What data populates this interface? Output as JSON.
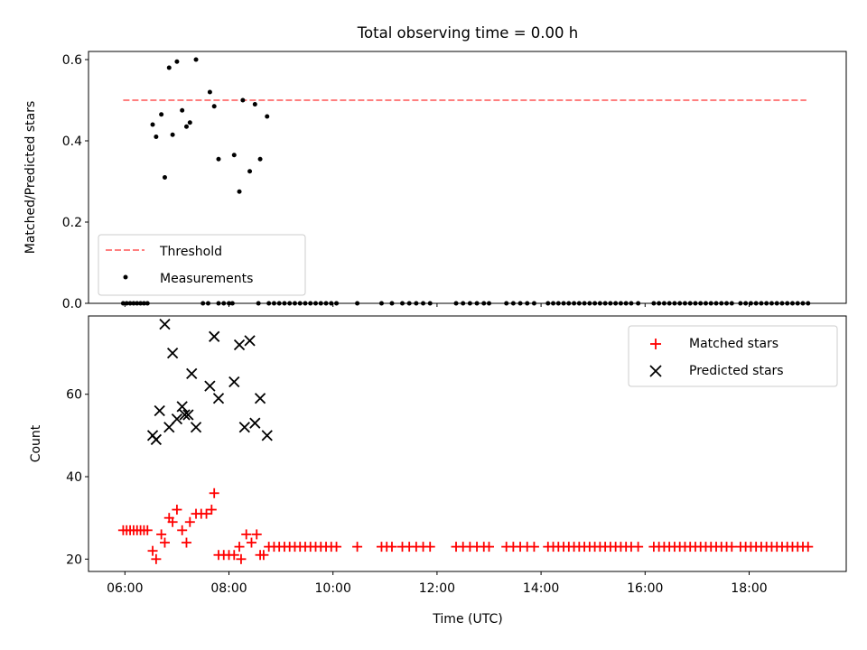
{
  "chart_data": [
    {
      "type": "scatter",
      "title": "Total observing time = 0.00 h",
      "xlabel": "",
      "ylabel": "Matched/Predicted stars",
      "xlim": [
        "05:18",
        "19:52"
      ],
      "ylim": [
        0,
        0.62
      ],
      "yticks": [
        0.0,
        0.2,
        0.4,
        0.6
      ],
      "ytick_labels": [
        "0.0",
        "0.2",
        "0.4",
        "0.6"
      ],
      "legend_position": "lower-left",
      "threshold": {
        "name": "Threshold",
        "y": 0.5,
        "x_start": "05:58",
        "x_end": "19:06",
        "color": "#ff7f7f",
        "style": "dashed"
      },
      "series": [
        {
          "name": "Measurements",
          "color": "#000000",
          "marker": "dot",
          "points": [
            [
              "06:32",
              0.44
            ],
            [
              "06:36",
              0.41
            ],
            [
              "06:42",
              0.465
            ],
            [
              "06:46",
              0.31
            ],
            [
              "06:51",
              0.58
            ],
            [
              "06:55",
              0.415
            ],
            [
              "07:00",
              0.595
            ],
            [
              "07:06",
              0.475
            ],
            [
              "07:11",
              0.435
            ],
            [
              "07:15",
              0.445
            ],
            [
              "07:22",
              0.6
            ],
            [
              "07:38",
              0.52
            ],
            [
              "07:43",
              0.485
            ],
            [
              "07:48",
              0.355
            ],
            [
              "08:06",
              0.365
            ],
            [
              "08:12",
              0.275
            ],
            [
              "08:16",
              0.5
            ],
            [
              "08:24",
              0.325
            ],
            [
              "08:30",
              0.49
            ],
            [
              "08:36",
              0.355
            ],
            [
              "08:44",
              0.46
            ],
            [
              "05:58",
              0.0
            ],
            [
              "06:02",
              0.0
            ],
            [
              "06:06",
              0.0
            ],
            [
              "06:10",
              0.0
            ],
            [
              "06:14",
              0.0
            ],
            [
              "06:18",
              0.0
            ],
            [
              "06:22",
              0.0
            ],
            [
              "06:26",
              0.0
            ],
            [
              "07:30",
              0.0
            ],
            [
              "07:36",
              0.0
            ],
            [
              "07:48",
              0.0
            ],
            [
              "07:54",
              0.0
            ],
            [
              "08:00",
              0.0
            ],
            [
              "08:04",
              0.0
            ],
            [
              "08:34",
              0.0
            ],
            [
              "08:46",
              0.0
            ],
            [
              "08:52",
              0.0
            ],
            [
              "08:58",
              0.0
            ],
            [
              "09:04",
              0.0
            ],
            [
              "09:10",
              0.0
            ],
            [
              "09:16",
              0.0
            ],
            [
              "09:22",
              0.0
            ],
            [
              "09:28",
              0.0
            ],
            [
              "09:34",
              0.0
            ],
            [
              "09:40",
              0.0
            ],
            [
              "09:46",
              0.0
            ],
            [
              "09:52",
              0.0
            ],
            [
              "09:58",
              0.0
            ],
            [
              "10:04",
              0.0
            ],
            [
              "10:28",
              0.0
            ],
            [
              "10:56",
              0.0
            ],
            [
              "11:08",
              0.0
            ],
            [
              "11:20",
              0.0
            ],
            [
              "11:28",
              0.0
            ],
            [
              "11:36",
              0.0
            ],
            [
              "11:44",
              0.0
            ],
            [
              "11:52",
              0.0
            ],
            [
              "12:22",
              0.0
            ],
            [
              "12:30",
              0.0
            ],
            [
              "12:38",
              0.0
            ],
            [
              "12:46",
              0.0
            ],
            [
              "12:54",
              0.0
            ],
            [
              "13:00",
              0.0
            ],
            [
              "13:20",
              0.0
            ],
            [
              "13:28",
              0.0
            ],
            [
              "13:36",
              0.0
            ],
            [
              "13:44",
              0.0
            ],
            [
              "13:52",
              0.0
            ],
            [
              "14:08",
              0.0
            ],
            [
              "14:14",
              0.0
            ],
            [
              "14:20",
              0.0
            ],
            [
              "14:26",
              0.0
            ],
            [
              "14:32",
              0.0
            ],
            [
              "14:38",
              0.0
            ],
            [
              "14:44",
              0.0
            ],
            [
              "14:50",
              0.0
            ],
            [
              "14:56",
              0.0
            ],
            [
              "15:02",
              0.0
            ],
            [
              "15:08",
              0.0
            ],
            [
              "15:14",
              0.0
            ],
            [
              "15:20",
              0.0
            ],
            [
              "15:26",
              0.0
            ],
            [
              "15:32",
              0.0
            ],
            [
              "15:38",
              0.0
            ],
            [
              "15:44",
              0.0
            ],
            [
              "15:52",
              0.0
            ],
            [
              "16:10",
              0.0
            ],
            [
              "16:16",
              0.0
            ],
            [
              "16:22",
              0.0
            ],
            [
              "16:28",
              0.0
            ],
            [
              "16:34",
              0.0
            ],
            [
              "16:40",
              0.0
            ],
            [
              "16:46",
              0.0
            ],
            [
              "16:52",
              0.0
            ],
            [
              "16:58",
              0.0
            ],
            [
              "17:04",
              0.0
            ],
            [
              "17:10",
              0.0
            ],
            [
              "17:16",
              0.0
            ],
            [
              "17:22",
              0.0
            ],
            [
              "17:28",
              0.0
            ],
            [
              "17:34",
              0.0
            ],
            [
              "17:40",
              0.0
            ],
            [
              "17:50",
              0.0
            ],
            [
              "17:56",
              0.0
            ],
            [
              "18:02",
              0.0
            ],
            [
              "18:08",
              0.0
            ],
            [
              "18:14",
              0.0
            ],
            [
              "18:20",
              0.0
            ],
            [
              "18:26",
              0.0
            ],
            [
              "18:32",
              0.0
            ],
            [
              "18:38",
              0.0
            ],
            [
              "18:44",
              0.0
            ],
            [
              "18:50",
              0.0
            ],
            [
              "18:56",
              0.0
            ],
            [
              "19:02",
              0.0
            ],
            [
              "19:08",
              0.0
            ]
          ]
        }
      ]
    },
    {
      "type": "scatter",
      "title": "",
      "xlabel": "Time (UTC)",
      "ylabel": "Count",
      "xlim": [
        "05:18",
        "19:52"
      ],
      "ylim": [
        17,
        79
      ],
      "xticks": [
        "06:00",
        "08:00",
        "10:00",
        "12:00",
        "14:00",
        "16:00",
        "18:00"
      ],
      "yticks": [
        20,
        40,
        60
      ],
      "legend_position": "upper-right",
      "series": [
        {
          "name": "Matched stars",
          "color": "#ff0000",
          "marker": "plus",
          "points": [
            [
              "05:58",
              27
            ],
            [
              "06:02",
              27
            ],
            [
              "06:06",
              27
            ],
            [
              "06:10",
              27
            ],
            [
              "06:14",
              27
            ],
            [
              "06:18",
              27
            ],
            [
              "06:22",
              27
            ],
            [
              "06:26",
              27
            ],
            [
              "06:32",
              22
            ],
            [
              "06:36",
              20
            ],
            [
              "06:42",
              26
            ],
            [
              "06:46",
              24
            ],
            [
              "06:51",
              30
            ],
            [
              "06:55",
              29
            ],
            [
              "07:00",
              32
            ],
            [
              "07:06",
              27
            ],
            [
              "07:11",
              24
            ],
            [
              "07:15",
              29
            ],
            [
              "07:22",
              31
            ],
            [
              "07:28",
              31
            ],
            [
              "07:34",
              31
            ],
            [
              "07:40",
              32
            ],
            [
              "07:43",
              36
            ],
            [
              "07:48",
              21
            ],
            [
              "07:54",
              21
            ],
            [
              "08:00",
              21
            ],
            [
              "08:06",
              21
            ],
            [
              "08:12",
              23
            ],
            [
              "08:14",
              20
            ],
            [
              "08:20",
              26
            ],
            [
              "08:26",
              24
            ],
            [
              "08:32",
              26
            ],
            [
              "08:36",
              21
            ],
            [
              "08:40",
              21
            ],
            [
              "08:46",
              23
            ],
            [
              "08:52",
              23
            ],
            [
              "08:58",
              23
            ],
            [
              "09:04",
              23
            ],
            [
              "09:10",
              23
            ],
            [
              "09:16",
              23
            ],
            [
              "09:22",
              23
            ],
            [
              "09:28",
              23
            ],
            [
              "09:34",
              23
            ],
            [
              "09:40",
              23
            ],
            [
              "09:46",
              23
            ],
            [
              "09:52",
              23
            ],
            [
              "09:58",
              23
            ],
            [
              "10:04",
              23
            ],
            [
              "10:28",
              23
            ],
            [
              "10:56",
              23
            ],
            [
              "11:02",
              23
            ],
            [
              "11:08",
              23
            ],
            [
              "11:20",
              23
            ],
            [
              "11:28",
              23
            ],
            [
              "11:36",
              23
            ],
            [
              "11:44",
              23
            ],
            [
              "11:52",
              23
            ],
            [
              "12:22",
              23
            ],
            [
              "12:30",
              23
            ],
            [
              "12:38",
              23
            ],
            [
              "12:46",
              23
            ],
            [
              "12:54",
              23
            ],
            [
              "13:00",
              23
            ],
            [
              "13:20",
              23
            ],
            [
              "13:28",
              23
            ],
            [
              "13:36",
              23
            ],
            [
              "13:44",
              23
            ],
            [
              "13:52",
              23
            ],
            [
              "14:08",
              23
            ],
            [
              "14:14",
              23
            ],
            [
              "14:20",
              23
            ],
            [
              "14:26",
              23
            ],
            [
              "14:32",
              23
            ],
            [
              "14:38",
              23
            ],
            [
              "14:44",
              23
            ],
            [
              "14:50",
              23
            ],
            [
              "14:56",
              23
            ],
            [
              "15:02",
              23
            ],
            [
              "15:08",
              23
            ],
            [
              "15:14",
              23
            ],
            [
              "15:20",
              23
            ],
            [
              "15:26",
              23
            ],
            [
              "15:32",
              23
            ],
            [
              "15:38",
              23
            ],
            [
              "15:44",
              23
            ],
            [
              "15:52",
              23
            ],
            [
              "16:10",
              23
            ],
            [
              "16:16",
              23
            ],
            [
              "16:22",
              23
            ],
            [
              "16:28",
              23
            ],
            [
              "16:34",
              23
            ],
            [
              "16:40",
              23
            ],
            [
              "16:46",
              23
            ],
            [
              "16:52",
              23
            ],
            [
              "16:58",
              23
            ],
            [
              "17:04",
              23
            ],
            [
              "17:10",
              23
            ],
            [
              "17:16",
              23
            ],
            [
              "17:22",
              23
            ],
            [
              "17:28",
              23
            ],
            [
              "17:34",
              23
            ],
            [
              "17:40",
              23
            ],
            [
              "17:50",
              23
            ],
            [
              "17:56",
              23
            ],
            [
              "18:02",
              23
            ],
            [
              "18:08",
              23
            ],
            [
              "18:14",
              23
            ],
            [
              "18:20",
              23
            ],
            [
              "18:26",
              23
            ],
            [
              "18:32",
              23
            ],
            [
              "18:38",
              23
            ],
            [
              "18:44",
              23
            ],
            [
              "18:50",
              23
            ],
            [
              "18:56",
              23
            ],
            [
              "19:02",
              23
            ],
            [
              "19:08",
              23
            ]
          ]
        },
        {
          "name": "Predicted stars",
          "color": "#000000",
          "marker": "x",
          "points": [
            [
              "06:32",
              50
            ],
            [
              "06:36",
              49
            ],
            [
              "06:40",
              56
            ],
            [
              "06:46",
              77
            ],
            [
              "06:51",
              52
            ],
            [
              "06:55",
              70
            ],
            [
              "07:00",
              54
            ],
            [
              "07:06",
              57
            ],
            [
              "07:09",
              55
            ],
            [
              "07:13",
              55
            ],
            [
              "07:17",
              65
            ],
            [
              "07:22",
              52
            ],
            [
              "07:38",
              62
            ],
            [
              "07:43",
              74
            ],
            [
              "07:48",
              59
            ],
            [
              "08:06",
              63
            ],
            [
              "08:12",
              72
            ],
            [
              "08:18",
              52
            ],
            [
              "08:24",
              73
            ],
            [
              "08:30",
              53
            ],
            [
              "08:36",
              59
            ],
            [
              "08:44",
              50
            ]
          ]
        }
      ]
    }
  ]
}
